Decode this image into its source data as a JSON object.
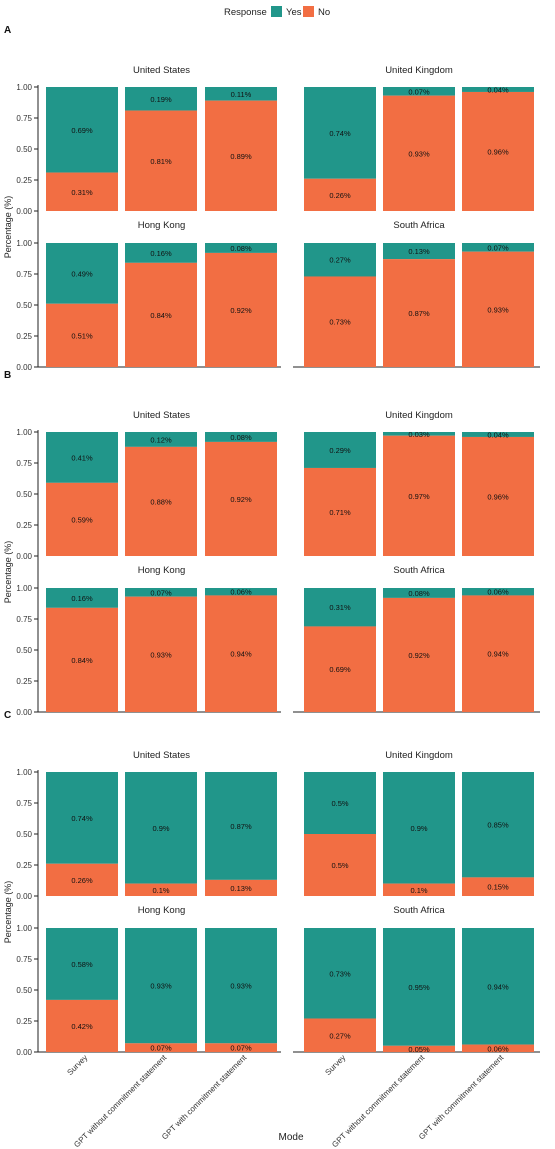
{
  "colors": {
    "yes": "#21968a",
    "no": "#f26e43"
  },
  "legend": {
    "title": "Response",
    "items": [
      {
        "key": "yes",
        "label": "Yes"
      },
      {
        "key": "no",
        "label": "No"
      }
    ]
  },
  "y_axis_label": "Percentage (%)",
  "x_axis_label": "Mode",
  "chart_data": {
    "type": "bar",
    "stacked": true,
    "ylim": [
      0,
      1
    ],
    "yticks": [
      "0.00",
      "0.25",
      "0.50",
      "0.75",
      "1.00"
    ],
    "categories": [
      "Survey",
      "GPT without commitment statement",
      "GPT with commitment statement"
    ],
    "countries": [
      "United States",
      "United Kingdom",
      "Hong Kong",
      "South Africa"
    ],
    "panels": [
      {
        "label": "A",
        "facets": [
          {
            "title": "United States",
            "yes": [
              0.69,
              0.19,
              0.11
            ],
            "no": [
              0.31,
              0.81,
              0.89
            ]
          },
          {
            "title": "United Kingdom",
            "yes": [
              0.74,
              0.07,
              0.04
            ],
            "no": [
              0.26,
              0.93,
              0.96
            ]
          },
          {
            "title": "Hong Kong",
            "yes": [
              0.49,
              0.16,
              0.08
            ],
            "no": [
              0.51,
              0.84,
              0.92
            ]
          },
          {
            "title": "South Africa",
            "yes": [
              0.27,
              0.13,
              0.07
            ],
            "no": [
              0.73,
              0.87,
              0.93
            ]
          }
        ]
      },
      {
        "label": "B",
        "facets": [
          {
            "title": "United States",
            "yes": [
              0.41,
              0.12,
              0.08
            ],
            "no": [
              0.59,
              0.88,
              0.92
            ]
          },
          {
            "title": "United Kingdom",
            "yes": [
              0.29,
              0.03,
              0.04
            ],
            "no": [
              0.71,
              0.97,
              0.96
            ]
          },
          {
            "title": "Hong Kong",
            "yes": [
              0.16,
              0.07,
              0.06
            ],
            "no": [
              0.84,
              0.93,
              0.94
            ]
          },
          {
            "title": "South Africa",
            "yes": [
              0.31,
              0.08,
              0.06
            ],
            "no": [
              0.69,
              0.92,
              0.94
            ]
          }
        ]
      },
      {
        "label": "C",
        "facets": [
          {
            "title": "United States",
            "yes": [
              0.74,
              0.9,
              0.87
            ],
            "no": [
              0.26,
              0.1,
              0.13
            ]
          },
          {
            "title": "United Kingdom",
            "yes": [
              0.5,
              0.9,
              0.85
            ],
            "no": [
              0.5,
              0.1,
              0.15
            ]
          },
          {
            "title": "Hong Kong",
            "yes": [
              0.58,
              0.93,
              0.93
            ],
            "no": [
              0.42,
              0.07,
              0.07
            ]
          },
          {
            "title": "South Africa",
            "yes": [
              0.73,
              0.95,
              0.94
            ],
            "no": [
              0.27,
              0.05,
              0.06
            ]
          }
        ]
      }
    ]
  }
}
